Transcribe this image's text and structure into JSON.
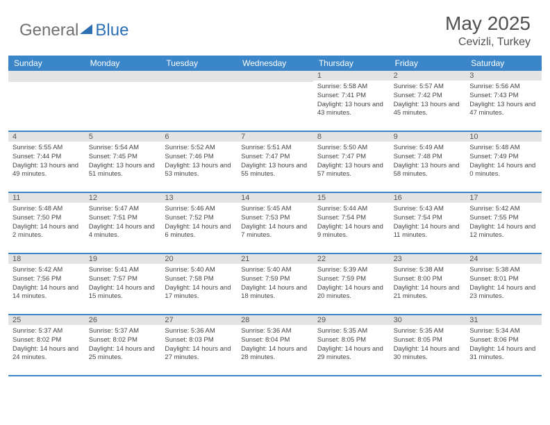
{
  "brand": {
    "general": "General",
    "blue": "Blue"
  },
  "title": "May 2025",
  "location": "Cevizli, Turkey",
  "colors": {
    "header_bg": "#3b86c8",
    "header_text": "#ffffff",
    "strip_bg": "#e3e3e3",
    "text": "#444444",
    "border": "#3b86c8",
    "logo_blue": "#2b6fb5",
    "logo_gray": "#707070",
    "background": "#ffffff"
  },
  "typography": {
    "title_fontsize": 28,
    "location_fontsize": 16,
    "dayheader_fontsize": 12,
    "daynum_fontsize": 11,
    "body_fontsize": 9.5
  },
  "layout": {
    "columns": 7,
    "rows": 5,
    "cell_min_height": 86
  },
  "day_headers": [
    "Sunday",
    "Monday",
    "Tuesday",
    "Wednesday",
    "Thursday",
    "Friday",
    "Saturday"
  ],
  "weeks": [
    [
      null,
      null,
      null,
      null,
      {
        "n": "1",
        "sr": "5:58 AM",
        "ss": "7:41 PM",
        "dl": "13 hours and 43 minutes."
      },
      {
        "n": "2",
        "sr": "5:57 AM",
        "ss": "7:42 PM",
        "dl": "13 hours and 45 minutes."
      },
      {
        "n": "3",
        "sr": "5:56 AM",
        "ss": "7:43 PM",
        "dl": "13 hours and 47 minutes."
      }
    ],
    [
      {
        "n": "4",
        "sr": "5:55 AM",
        "ss": "7:44 PM",
        "dl": "13 hours and 49 minutes."
      },
      {
        "n": "5",
        "sr": "5:54 AM",
        "ss": "7:45 PM",
        "dl": "13 hours and 51 minutes."
      },
      {
        "n": "6",
        "sr": "5:52 AM",
        "ss": "7:46 PM",
        "dl": "13 hours and 53 minutes."
      },
      {
        "n": "7",
        "sr": "5:51 AM",
        "ss": "7:47 PM",
        "dl": "13 hours and 55 minutes."
      },
      {
        "n": "8",
        "sr": "5:50 AM",
        "ss": "7:47 PM",
        "dl": "13 hours and 57 minutes."
      },
      {
        "n": "9",
        "sr": "5:49 AM",
        "ss": "7:48 PM",
        "dl": "13 hours and 58 minutes."
      },
      {
        "n": "10",
        "sr": "5:48 AM",
        "ss": "7:49 PM",
        "dl": "14 hours and 0 minutes."
      }
    ],
    [
      {
        "n": "11",
        "sr": "5:48 AM",
        "ss": "7:50 PM",
        "dl": "14 hours and 2 minutes."
      },
      {
        "n": "12",
        "sr": "5:47 AM",
        "ss": "7:51 PM",
        "dl": "14 hours and 4 minutes."
      },
      {
        "n": "13",
        "sr": "5:46 AM",
        "ss": "7:52 PM",
        "dl": "14 hours and 6 minutes."
      },
      {
        "n": "14",
        "sr": "5:45 AM",
        "ss": "7:53 PM",
        "dl": "14 hours and 7 minutes."
      },
      {
        "n": "15",
        "sr": "5:44 AM",
        "ss": "7:54 PM",
        "dl": "14 hours and 9 minutes."
      },
      {
        "n": "16",
        "sr": "5:43 AM",
        "ss": "7:54 PM",
        "dl": "14 hours and 11 minutes."
      },
      {
        "n": "17",
        "sr": "5:42 AM",
        "ss": "7:55 PM",
        "dl": "14 hours and 12 minutes."
      }
    ],
    [
      {
        "n": "18",
        "sr": "5:42 AM",
        "ss": "7:56 PM",
        "dl": "14 hours and 14 minutes."
      },
      {
        "n": "19",
        "sr": "5:41 AM",
        "ss": "7:57 PM",
        "dl": "14 hours and 15 minutes."
      },
      {
        "n": "20",
        "sr": "5:40 AM",
        "ss": "7:58 PM",
        "dl": "14 hours and 17 minutes."
      },
      {
        "n": "21",
        "sr": "5:40 AM",
        "ss": "7:59 PM",
        "dl": "14 hours and 18 minutes."
      },
      {
        "n": "22",
        "sr": "5:39 AM",
        "ss": "7:59 PM",
        "dl": "14 hours and 20 minutes."
      },
      {
        "n": "23",
        "sr": "5:38 AM",
        "ss": "8:00 PM",
        "dl": "14 hours and 21 minutes."
      },
      {
        "n": "24",
        "sr": "5:38 AM",
        "ss": "8:01 PM",
        "dl": "14 hours and 23 minutes."
      }
    ],
    [
      {
        "n": "25",
        "sr": "5:37 AM",
        "ss": "8:02 PM",
        "dl": "14 hours and 24 minutes."
      },
      {
        "n": "26",
        "sr": "5:37 AM",
        "ss": "8:02 PM",
        "dl": "14 hours and 25 minutes."
      },
      {
        "n": "27",
        "sr": "5:36 AM",
        "ss": "8:03 PM",
        "dl": "14 hours and 27 minutes."
      },
      {
        "n": "28",
        "sr": "5:36 AM",
        "ss": "8:04 PM",
        "dl": "14 hours and 28 minutes."
      },
      {
        "n": "29",
        "sr": "5:35 AM",
        "ss": "8:05 PM",
        "dl": "14 hours and 29 minutes."
      },
      {
        "n": "30",
        "sr": "5:35 AM",
        "ss": "8:05 PM",
        "dl": "14 hours and 30 minutes."
      },
      {
        "n": "31",
        "sr": "5:34 AM",
        "ss": "8:06 PM",
        "dl": "14 hours and 31 minutes."
      }
    ]
  ],
  "labels": {
    "sunrise": "Sunrise: ",
    "sunset": "Sunset: ",
    "daylight": "Daylight: "
  }
}
